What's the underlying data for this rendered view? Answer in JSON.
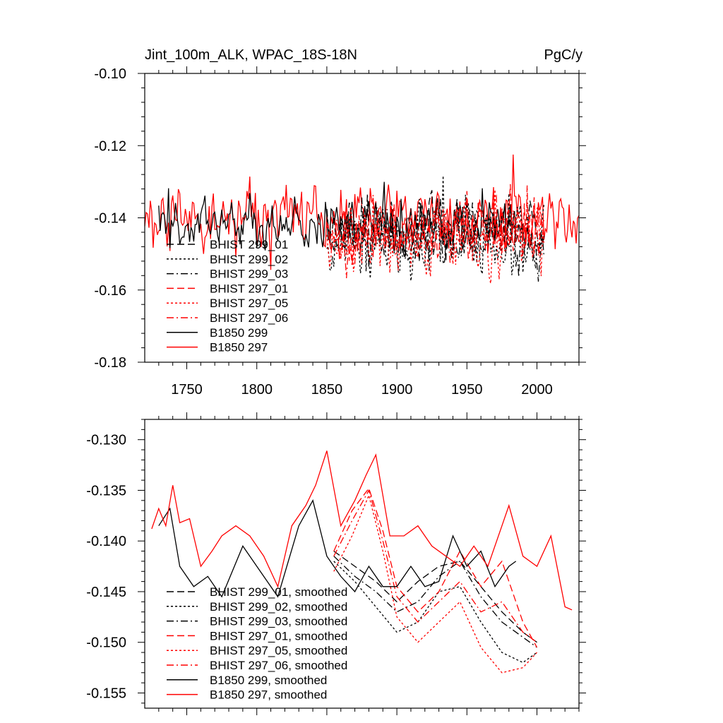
{
  "chart_data": [
    {
      "type": "line",
      "title": "Jint_100m_ALK, WPAC_18S-18N",
      "units": "PgC/y",
      "xlim": [
        1720,
        2030
      ],
      "ylim": [
        -0.18,
        -0.1
      ],
      "xticks": [
        1750,
        1800,
        1850,
        1900,
        1950,
        2000
      ],
      "xtick_labels": [
        "1750",
        "1800",
        "1850",
        "1900",
        "1950",
        "2000"
      ],
      "yticks": [
        -0.18,
        -0.16,
        -0.14,
        -0.12,
        -0.1
      ],
      "ytick_labels": [
        "-0.18",
        "-0.16",
        "-0.14",
        "-0.12",
        "-0.10"
      ],
      "legend_position": "bottom-left",
      "series": [
        {
          "name": "BHIST 299_01",
          "color": "#000000",
          "dash": "dashed",
          "x_range": [
            1850,
            2005
          ],
          "mean": -0.143,
          "amplitude": 0.007,
          "seed": 11
        },
        {
          "name": "BHIST 299_02",
          "color": "#000000",
          "dash": "dotted",
          "x_range": [
            1850,
            2005
          ],
          "mean": -0.147,
          "amplitude": 0.008,
          "seed": 12
        },
        {
          "name": "BHIST 299_03",
          "color": "#000000",
          "dash": "dashdot",
          "x_range": [
            1850,
            2005
          ],
          "mean": -0.145,
          "amplitude": 0.007,
          "seed": 13
        },
        {
          "name": "BHIST 297_01",
          "color": "#ff0000",
          "dash": "dashed",
          "x_range": [
            1850,
            2005
          ],
          "mean": -0.143,
          "amplitude": 0.007,
          "seed": 14
        },
        {
          "name": "BHIST 297_05",
          "color": "#ff0000",
          "dash": "dotted",
          "x_range": [
            1850,
            2005
          ],
          "mean": -0.146,
          "amplitude": 0.008,
          "seed": 15
        },
        {
          "name": "BHIST 297_06",
          "color": "#ff0000",
          "dash": "dashdot",
          "x_range": [
            1850,
            2005
          ],
          "mean": -0.144,
          "amplitude": 0.007,
          "seed": 16
        },
        {
          "name": "B1850 299",
          "color": "#000000",
          "dash": "solid",
          "x_range": [
            1730,
            1985
          ],
          "mean": -0.142,
          "amplitude": 0.006,
          "seed": 17
        },
        {
          "name": "B1850 297",
          "color": "#ff0000",
          "dash": "solid",
          "x_range": [
            1720,
            2030
          ],
          "mean": -0.14,
          "amplitude": 0.007,
          "seed": 18
        }
      ]
    },
    {
      "type": "line",
      "xlim": [
        1720,
        2030
      ],
      "ylim": [
        -0.1565,
        -0.128
      ],
      "yticks": [
        -0.155,
        -0.15,
        -0.145,
        -0.14,
        -0.135,
        -0.13
      ],
      "ytick_labels": [
        "-0.155",
        "-0.150",
        "-0.145",
        "-0.140",
        "-0.135",
        "-0.130"
      ],
      "legend_position": "bottom-left",
      "series": [
        {
          "name": "BHIST 299_01, smoothed",
          "color": "#000000",
          "dash": "dashed",
          "x": [
            1855,
            1870,
            1885,
            1900,
            1915,
            1930,
            1945,
            1960,
            1975,
            1990,
            2000
          ],
          "y": [
            -0.141,
            -0.1425,
            -0.144,
            -0.146,
            -0.144,
            -0.1425,
            -0.142,
            -0.1445,
            -0.147,
            -0.149,
            -0.15
          ]
        },
        {
          "name": "BHIST 299_02, smoothed",
          "color": "#000000",
          "dash": "dotted",
          "x": [
            1855,
            1870,
            1885,
            1900,
            1915,
            1930,
            1945,
            1960,
            1975,
            1990,
            2000
          ],
          "y": [
            -0.142,
            -0.144,
            -0.1465,
            -0.149,
            -0.148,
            -0.145,
            -0.1445,
            -0.148,
            -0.151,
            -0.152,
            -0.151
          ]
        },
        {
          "name": "BHIST 299_03, smoothed",
          "color": "#000000",
          "dash": "dashdot",
          "x": [
            1855,
            1870,
            1885,
            1900,
            1915,
            1930,
            1945,
            1960,
            1975,
            1990,
            2000
          ],
          "y": [
            -0.1415,
            -0.1435,
            -0.145,
            -0.147,
            -0.146,
            -0.1435,
            -0.142,
            -0.1455,
            -0.148,
            -0.1495,
            -0.1505
          ]
        },
        {
          "name": "BHIST 297_01, smoothed",
          "color": "#ff0000",
          "dash": "dashed",
          "x": [
            1855,
            1868,
            1880,
            1890,
            1900,
            1915,
            1930,
            1945,
            1960,
            1975,
            1990,
            2000
          ],
          "y": [
            -0.141,
            -0.137,
            -0.1348,
            -0.139,
            -0.1445,
            -0.147,
            -0.145,
            -0.141,
            -0.1445,
            -0.142,
            -0.148,
            -0.1505
          ]
        },
        {
          "name": "BHIST 297_05, smoothed",
          "color": "#ff0000",
          "dash": "dotted",
          "x": [
            1855,
            1868,
            1880,
            1890,
            1900,
            1915,
            1930,
            1945,
            1960,
            1975,
            1990,
            2000
          ],
          "y": [
            -0.143,
            -0.1395,
            -0.1355,
            -0.141,
            -0.1475,
            -0.15,
            -0.148,
            -0.146,
            -0.1505,
            -0.153,
            -0.1525,
            -0.151
          ]
        },
        {
          "name": "BHIST 297_06, smoothed",
          "color": "#ff0000",
          "dash": "dashdot",
          "x": [
            1855,
            1868,
            1880,
            1890,
            1900,
            1915,
            1930,
            1945,
            1960,
            1975,
            1990,
            2000
          ],
          "y": [
            -0.1415,
            -0.138,
            -0.135,
            -0.14,
            -0.1455,
            -0.148,
            -0.146,
            -0.144,
            -0.147,
            -0.146,
            -0.149,
            -0.15
          ]
        },
        {
          "name": "B1850 299, smoothed",
          "color": "#000000",
          "dash": "solid",
          "x": [
            1730,
            1738,
            1745,
            1755,
            1765,
            1775,
            1790,
            1805,
            1815,
            1830,
            1840,
            1850,
            1860,
            1870,
            1880,
            1890,
            1900,
            1910,
            1920,
            1930,
            1940,
            1950,
            1960,
            1970,
            1980,
            1985
          ],
          "y": [
            -0.1385,
            -0.1368,
            -0.1425,
            -0.1445,
            -0.1435,
            -0.1455,
            -0.1405,
            -0.1435,
            -0.1455,
            -0.1385,
            -0.136,
            -0.1415,
            -0.1435,
            -0.145,
            -0.1425,
            -0.1445,
            -0.1445,
            -0.1425,
            -0.1445,
            -0.144,
            -0.1395,
            -0.1425,
            -0.141,
            -0.1445,
            -0.1425,
            -0.142
          ]
        },
        {
          "name": "B1850 297, smoothed",
          "color": "#ff0000",
          "dash": "solid",
          "x": [
            1725,
            1730,
            1735,
            1740,
            1745,
            1752,
            1760,
            1768,
            1775,
            1785,
            1795,
            1805,
            1815,
            1825,
            1835,
            1842,
            1850,
            1860,
            1870,
            1878,
            1885,
            1895,
            1905,
            1915,
            1925,
            1935,
            1945,
            1955,
            1965,
            1975,
            1980,
            1990,
            2000,
            2010,
            2020,
            2025
          ],
          "y": [
            -0.1388,
            -0.1368,
            -0.1385,
            -0.1345,
            -0.1382,
            -0.1378,
            -0.1425,
            -0.141,
            -0.1395,
            -0.1385,
            -0.1395,
            -0.1415,
            -0.1445,
            -0.1385,
            -0.1365,
            -0.1345,
            -0.1311,
            -0.1385,
            -0.136,
            -0.1335,
            -0.1315,
            -0.1395,
            -0.1395,
            -0.1385,
            -0.1405,
            -0.1415,
            -0.1425,
            -0.1405,
            -0.1425,
            -0.1385,
            -0.1365,
            -0.1415,
            -0.1425,
            -0.1395,
            -0.1465,
            -0.1468
          ]
        }
      ]
    }
  ]
}
